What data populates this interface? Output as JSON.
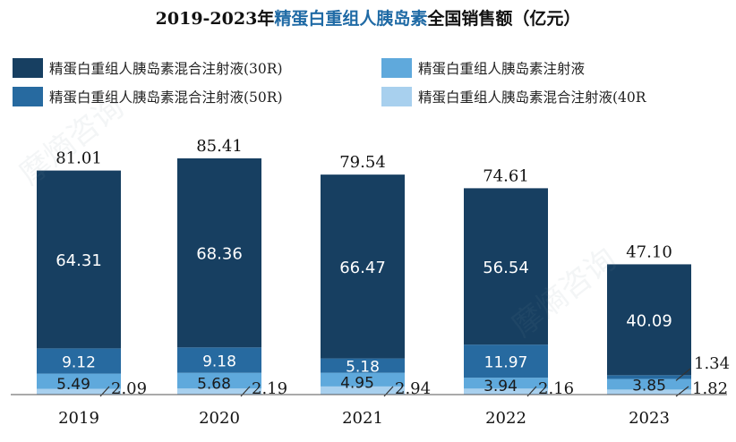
{
  "title": {
    "prefix": "2019-2023年",
    "highlight": "精蛋白重组人胰岛素",
    "suffix": "全国销售额（亿元）"
  },
  "watermark": "摩熵咨询",
  "colors": {
    "s30r": "#173f61",
    "s50r": "#276aa0",
    "inj": "#5fa9dc",
    "s40r": "#a8d0ee",
    "title_highlight": "#1f6aa5"
  },
  "chart_data": {
    "type": "bar",
    "stacked": true,
    "categories": [
      "2019",
      "2020",
      "2021",
      "2022",
      "2023"
    ],
    "series": [
      {
        "key": "s30r",
        "name": "精蛋白重组人胰岛素混合注射液(30R)",
        "values": [
          64.31,
          68.36,
          66.47,
          56.54,
          40.09
        ]
      },
      {
        "key": "s50r",
        "name": "精蛋白重组人胰岛素混合注射液(50R)",
        "values": [
          9.12,
          9.18,
          5.18,
          11.97,
          1.34
        ]
      },
      {
        "key": "inj",
        "name": "精蛋白重组人胰岛素注射液",
        "values": [
          5.49,
          5.68,
          4.95,
          3.94,
          3.85
        ]
      },
      {
        "key": "s40r",
        "name": "精蛋白重组人胰岛素混合注射液(40R",
        "values": [
          2.09,
          2.19,
          2.94,
          2.16,
          1.82
        ]
      }
    ],
    "totals": [
      81.01,
      85.41,
      79.54,
      74.61,
      47.1
    ],
    "total_labels": [
      "81.01",
      "85.41",
      "79.54",
      "74.61",
      "47.10"
    ],
    "value_labels": {
      "s30r": [
        "64.31",
        "68.36",
        "66.47",
        "56.54",
        "40.09"
      ],
      "s50r": [
        "9.12",
        "9.18",
        "5.18",
        "11.97",
        "1.34"
      ],
      "inj": [
        "5.49",
        "5.68",
        "4.95",
        "3.94",
        "3.85"
      ],
      "s40r": [
        "2.09",
        "2.19",
        "2.94",
        "2.16",
        "1.82"
      ]
    },
    "ylim": [
      0,
      85.41
    ],
    "xlabel": "",
    "ylabel": "",
    "legend_position": "top",
    "grid": false
  }
}
